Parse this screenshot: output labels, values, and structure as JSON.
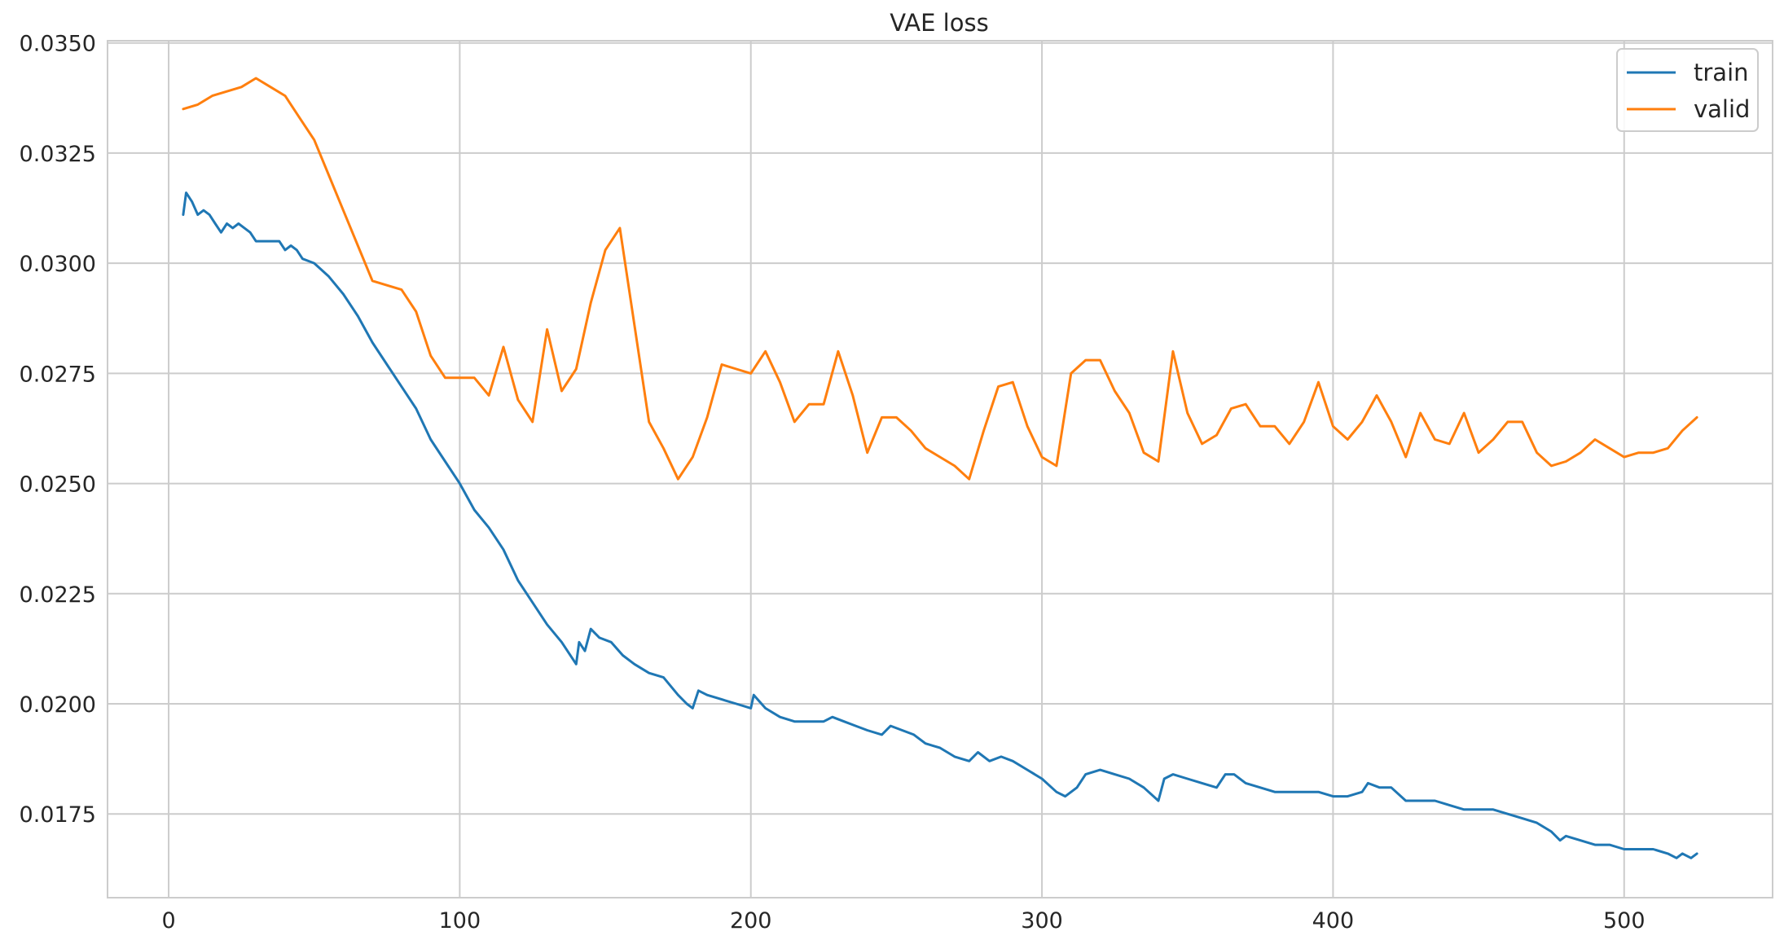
{
  "chart_data": {
    "type": "line",
    "title": "VAE loss",
    "xlabel": "",
    "ylabel": "",
    "xlim": [
      -21,
      551
    ],
    "ylim": [
      0.0156,
      0.03505
    ],
    "xticks": [
      0,
      100,
      200,
      300,
      400,
      500
    ],
    "yticks": [
      0.0175,
      0.02,
      0.0225,
      0.025,
      0.0275,
      0.03,
      0.0325,
      0.035
    ],
    "xtick_labels": [
      "0",
      "100",
      "200",
      "300",
      "400",
      "500"
    ],
    "ytick_labels": [
      "0.0175",
      "0.0200",
      "0.0225",
      "0.0250",
      "0.0275",
      "0.0300",
      "0.0325",
      "0.0350"
    ],
    "grid": true,
    "legend": "top-right",
    "series": [
      {
        "name": "train",
        "color": "#1f77b4",
        "points": [
          [
            5,
            0.0311
          ],
          [
            6,
            0.0316
          ],
          [
            8,
            0.0314
          ],
          [
            10,
            0.0311
          ],
          [
            12,
            0.0312
          ],
          [
            14,
            0.0311
          ],
          [
            16,
            0.0309
          ],
          [
            18,
            0.0307
          ],
          [
            20,
            0.0309
          ],
          [
            22,
            0.0308
          ],
          [
            24,
            0.0309
          ],
          [
            26,
            0.0308
          ],
          [
            28,
            0.0307
          ],
          [
            30,
            0.0305
          ],
          [
            34,
            0.0305
          ],
          [
            38,
            0.0305
          ],
          [
            40,
            0.0303
          ],
          [
            42,
            0.0304
          ],
          [
            44,
            0.0303
          ],
          [
            46,
            0.0301
          ],
          [
            50,
            0.03
          ],
          [
            55,
            0.0297
          ],
          [
            60,
            0.0293
          ],
          [
            65,
            0.0288
          ],
          [
            70,
            0.0282
          ],
          [
            75,
            0.0277
          ],
          [
            80,
            0.0272
          ],
          [
            85,
            0.0267
          ],
          [
            90,
            0.026
          ],
          [
            95,
            0.0255
          ],
          [
            100,
            0.025
          ],
          [
            105,
            0.0244
          ],
          [
            110,
            0.024
          ],
          [
            115,
            0.0235
          ],
          [
            120,
            0.0228
          ],
          [
            125,
            0.0223
          ],
          [
            130,
            0.0218
          ],
          [
            135,
            0.0214
          ],
          [
            140,
            0.0209
          ],
          [
            141,
            0.0214
          ],
          [
            143,
            0.0212
          ],
          [
            145,
            0.0217
          ],
          [
            148,
            0.0215
          ],
          [
            152,
            0.0214
          ],
          [
            156,
            0.0211
          ],
          [
            160,
            0.0209
          ],
          [
            165,
            0.0207
          ],
          [
            170,
            0.0206
          ],
          [
            175,
            0.0202
          ],
          [
            178,
            0.02
          ],
          [
            180,
            0.0199
          ],
          [
            182,
            0.0203
          ],
          [
            185,
            0.0202
          ],
          [
            190,
            0.0201
          ],
          [
            195,
            0.02
          ],
          [
            200,
            0.0199
          ],
          [
            201,
            0.0202
          ],
          [
            205,
            0.0199
          ],
          [
            210,
            0.0197
          ],
          [
            215,
            0.0196
          ],
          [
            220,
            0.0196
          ],
          [
            225,
            0.0196
          ],
          [
            228,
            0.0197
          ],
          [
            232,
            0.0196
          ],
          [
            236,
            0.0195
          ],
          [
            240,
            0.0194
          ],
          [
            245,
            0.0193
          ],
          [
            248,
            0.0195
          ],
          [
            252,
            0.0194
          ],
          [
            256,
            0.0193
          ],
          [
            260,
            0.0191
          ],
          [
            265,
            0.019
          ],
          [
            270,
            0.0188
          ],
          [
            275,
            0.0187
          ],
          [
            278,
            0.0189
          ],
          [
            282,
            0.0187
          ],
          [
            286,
            0.0188
          ],
          [
            290,
            0.0187
          ],
          [
            295,
            0.0185
          ],
          [
            300,
            0.0183
          ],
          [
            305,
            0.018
          ],
          [
            308,
            0.0179
          ],
          [
            312,
            0.0181
          ],
          [
            315,
            0.0184
          ],
          [
            320,
            0.0185
          ],
          [
            325,
            0.0184
          ],
          [
            330,
            0.0183
          ],
          [
            335,
            0.0181
          ],
          [
            340,
            0.0178
          ],
          [
            342,
            0.0183
          ],
          [
            345,
            0.0184
          ],
          [
            350,
            0.0183
          ],
          [
            355,
            0.0182
          ],
          [
            360,
            0.0181
          ],
          [
            363,
            0.0184
          ],
          [
            366,
            0.0184
          ],
          [
            370,
            0.0182
          ],
          [
            375,
            0.0181
          ],
          [
            380,
            0.018
          ],
          [
            385,
            0.018
          ],
          [
            390,
            0.018
          ],
          [
            395,
            0.018
          ],
          [
            400,
            0.0179
          ],
          [
            405,
            0.0179
          ],
          [
            410,
            0.018
          ],
          [
            412,
            0.0182
          ],
          [
            416,
            0.0181
          ],
          [
            420,
            0.0181
          ],
          [
            425,
            0.0178
          ],
          [
            430,
            0.0178
          ],
          [
            435,
            0.0178
          ],
          [
            440,
            0.0177
          ],
          [
            445,
            0.0176
          ],
          [
            450,
            0.0176
          ],
          [
            455,
            0.0176
          ],
          [
            460,
            0.0175
          ],
          [
            465,
            0.0174
          ],
          [
            470,
            0.0173
          ],
          [
            475,
            0.0171
          ],
          [
            478,
            0.0169
          ],
          [
            480,
            0.017
          ],
          [
            485,
            0.0169
          ],
          [
            490,
            0.0168
          ],
          [
            495,
            0.0168
          ],
          [
            500,
            0.0167
          ],
          [
            505,
            0.0167
          ],
          [
            510,
            0.0167
          ],
          [
            515,
            0.0166
          ],
          [
            518,
            0.0165
          ],
          [
            520,
            0.0166
          ],
          [
            523,
            0.0165
          ],
          [
            525,
            0.0166
          ]
        ]
      },
      {
        "name": "valid",
        "color": "#ff7f0e",
        "points": [
          [
            5,
            0.0335
          ],
          [
            10,
            0.0336
          ],
          [
            15,
            0.0338
          ],
          [
            20,
            0.0339
          ],
          [
            25,
            0.034
          ],
          [
            30,
            0.0342
          ],
          [
            35,
            0.034
          ],
          [
            40,
            0.0338
          ],
          [
            45,
            0.0333
          ],
          [
            50,
            0.0328
          ],
          [
            55,
            0.032
          ],
          [
            60,
            0.0312
          ],
          [
            65,
            0.0304
          ],
          [
            70,
            0.0296
          ],
          [
            75,
            0.0295
          ],
          [
            80,
            0.0294
          ],
          [
            85,
            0.0289
          ],
          [
            90,
            0.0279
          ],
          [
            95,
            0.0274
          ],
          [
            100,
            0.0274
          ],
          [
            105,
            0.0274
          ],
          [
            110,
            0.027
          ],
          [
            115,
            0.0281
          ],
          [
            120,
            0.0269
          ],
          [
            125,
            0.0264
          ],
          [
            130,
            0.0285
          ],
          [
            135,
            0.0271
          ],
          [
            140,
            0.0276
          ],
          [
            145,
            0.0291
          ],
          [
            150,
            0.0303
          ],
          [
            155,
            0.0308
          ],
          [
            160,
            0.0286
          ],
          [
            165,
            0.0264
          ],
          [
            170,
            0.0258
          ],
          [
            175,
            0.0251
          ],
          [
            180,
            0.0256
          ],
          [
            185,
            0.0265
          ],
          [
            190,
            0.0277
          ],
          [
            195,
            0.0276
          ],
          [
            200,
            0.0275
          ],
          [
            205,
            0.028
          ],
          [
            210,
            0.0273
          ],
          [
            215,
            0.0264
          ],
          [
            220,
            0.0268
          ],
          [
            225,
            0.0268
          ],
          [
            230,
            0.028
          ],
          [
            235,
            0.027
          ],
          [
            240,
            0.0257
          ],
          [
            245,
            0.0265
          ],
          [
            250,
            0.0265
          ],
          [
            255,
            0.0262
          ],
          [
            260,
            0.0258
          ],
          [
            265,
            0.0256
          ],
          [
            270,
            0.0254
          ],
          [
            275,
            0.0251
          ],
          [
            280,
            0.0262
          ],
          [
            285,
            0.0272
          ],
          [
            290,
            0.0273
          ],
          [
            295,
            0.0263
          ],
          [
            300,
            0.0256
          ],
          [
            305,
            0.0254
          ],
          [
            310,
            0.0275
          ],
          [
            315,
            0.0278
          ],
          [
            320,
            0.0278
          ],
          [
            325,
            0.0271
          ],
          [
            330,
            0.0266
          ],
          [
            335,
            0.0257
          ],
          [
            340,
            0.0255
          ],
          [
            345,
            0.028
          ],
          [
            350,
            0.0266
          ],
          [
            355,
            0.0259
          ],
          [
            360,
            0.0261
          ],
          [
            365,
            0.0267
          ],
          [
            370,
            0.0268
          ],
          [
            375,
            0.0263
          ],
          [
            380,
            0.0263
          ],
          [
            385,
            0.0259
          ],
          [
            390,
            0.0264
          ],
          [
            395,
            0.0273
          ],
          [
            400,
            0.0263
          ],
          [
            405,
            0.026
          ],
          [
            410,
            0.0264
          ],
          [
            415,
            0.027
          ],
          [
            420,
            0.0264
          ],
          [
            425,
            0.0256
          ],
          [
            430,
            0.0266
          ],
          [
            435,
            0.026
          ],
          [
            440,
            0.0259
          ],
          [
            445,
            0.0266
          ],
          [
            450,
            0.0257
          ],
          [
            455,
            0.026
          ],
          [
            460,
            0.0264
          ],
          [
            465,
            0.0264
          ],
          [
            470,
            0.0257
          ],
          [
            475,
            0.0254
          ],
          [
            480,
            0.0255
          ],
          [
            485,
            0.0257
          ],
          [
            490,
            0.026
          ],
          [
            495,
            0.0258
          ],
          [
            500,
            0.0256
          ],
          [
            505,
            0.0257
          ],
          [
            510,
            0.0257
          ],
          [
            515,
            0.0258
          ],
          [
            520,
            0.0262
          ],
          [
            525,
            0.0265
          ]
        ]
      }
    ]
  }
}
